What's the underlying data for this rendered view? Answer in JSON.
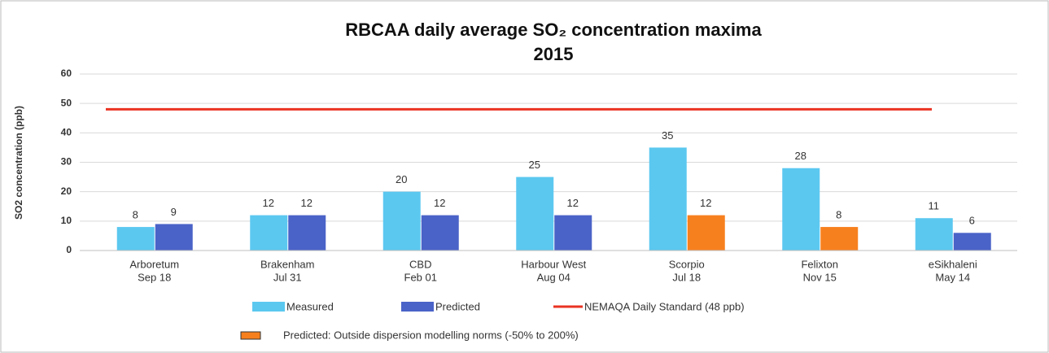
{
  "chart_data": {
    "type": "bar",
    "title": [
      "RBCAA daily average SO₂ concentration maxima",
      "2015"
    ],
    "y_label": "SO2 concentration (ppb)",
    "categories": [
      [
        "Arboretum",
        "Sep 18"
      ],
      [
        "Brakenham",
        "Jul 31"
      ],
      [
        "CBD",
        "Feb 01"
      ],
      [
        "Harbour West",
        "Aug 04"
      ],
      [
        "Scorpio",
        "Jul 18"
      ],
      [
        "Felixton",
        "Nov 15"
      ],
      [
        "eSikhaleni",
        "May 14"
      ]
    ],
    "series": [
      {
        "name": "Measured",
        "color": "#5bc8f0",
        "values": [
          8,
          12,
          20,
          25,
          35,
          28,
          11
        ]
      },
      {
        "name": "Predicted",
        "color": "#4a63c8",
        "values": [
          9,
          12,
          12,
          12,
          12,
          8,
          6
        ]
      }
    ],
    "outside_norms": {
      "name": "Predicted: Outside dispersion modelling norms (-50% to 200%)",
      "color": "#f7801e",
      "indices": [
        4,
        5
      ]
    },
    "reference_line": {
      "name": "NEMAQA Daily Standard (48 ppb)",
      "color": "#ea3323",
      "value": 48
    },
    "ylim": [
      0,
      60
    ],
    "yticks": [
      0,
      10,
      20,
      30,
      40,
      50,
      60
    ],
    "grid": true
  }
}
